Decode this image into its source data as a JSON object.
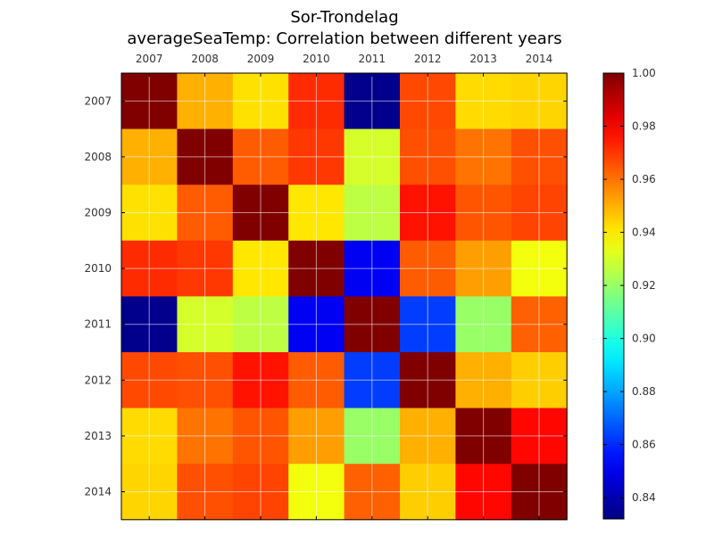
{
  "chart_data": {
    "type": "heatmap",
    "title": "Sor-Trondelag",
    "subtitle": "averageSeaTemp: Correlation between different years",
    "x_labels": [
      "2007",
      "2008",
      "2009",
      "2010",
      "2011",
      "2012",
      "2013",
      "2014"
    ],
    "y_labels": [
      "2007",
      "2008",
      "2009",
      "2010",
      "2011",
      "2012",
      "2013",
      "2014"
    ],
    "values": [
      [
        1.0,
        0.95,
        0.942,
        0.972,
        0.834,
        0.967,
        0.943,
        0.944
      ],
      [
        0.95,
        1.0,
        0.964,
        0.97,
        0.93,
        0.966,
        0.96,
        0.966
      ],
      [
        0.942,
        0.964,
        1.0,
        0.941,
        0.926,
        0.976,
        0.965,
        0.968
      ],
      [
        0.972,
        0.97,
        0.941,
        1.0,
        0.851,
        0.964,
        0.953,
        0.935
      ],
      [
        0.834,
        0.93,
        0.926,
        0.851,
        1.0,
        0.863,
        0.92,
        0.963
      ],
      [
        0.967,
        0.966,
        0.976,
        0.964,
        0.863,
        1.0,
        0.95,
        0.945
      ],
      [
        0.943,
        0.96,
        0.965,
        0.953,
        0.92,
        0.95,
        1.0,
        0.978
      ],
      [
        0.944,
        0.966,
        0.968,
        0.935,
        0.963,
        0.945,
        0.978,
        1.0
      ]
    ],
    "colorbar": {
      "range": [
        0.832,
        1.0
      ],
      "ticks": [
        "0.84",
        "0.86",
        "0.88",
        "0.90",
        "0.92",
        "0.94",
        "0.96",
        "0.98",
        "1.00"
      ],
      "colormap": "jet"
    },
    "x_axis_position": "top",
    "grid": true
  }
}
